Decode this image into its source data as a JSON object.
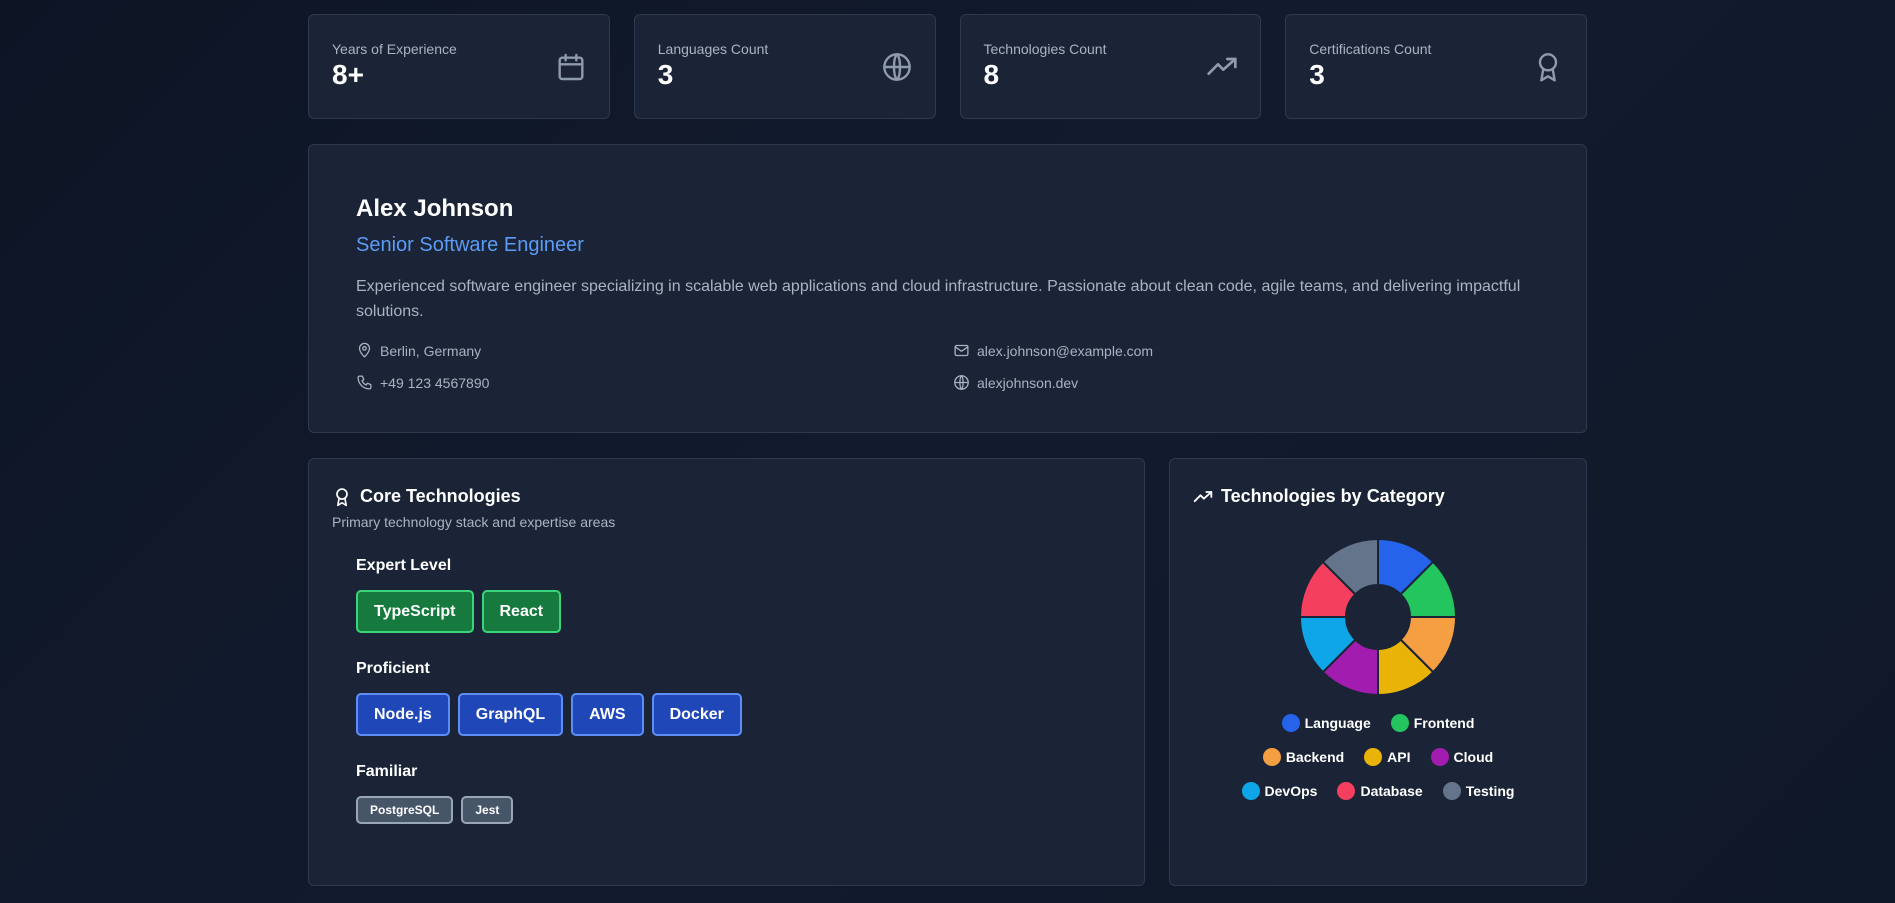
{
  "stats": [
    {
      "label": "Years of Experience",
      "value": "8+",
      "icon": "calendar-icon"
    },
    {
      "label": "Languages Count",
      "value": "3",
      "icon": "globe-icon"
    },
    {
      "label": "Technologies Count",
      "value": "8",
      "icon": "trending-up-icon"
    },
    {
      "label": "Certifications Count",
      "value": "3",
      "icon": "award-icon"
    }
  ],
  "profile": {
    "name": "Alex Johnson",
    "role": "Senior Software Engineer",
    "bio": "Experienced software engineer specializing in scalable web applications and cloud infrastructure. Passionate about clean code, agile teams, and delivering impactful solutions.",
    "location": "Berlin, Germany",
    "email": "alex.johnson@example.com",
    "phone": "+49 123 4567890",
    "website": "alexjohnson.dev"
  },
  "core": {
    "title": "Core Technologies",
    "subtitle": "Primary technology stack and expertise areas",
    "levels": [
      {
        "title": "Expert Level",
        "items": [
          "TypeScript",
          "React"
        ]
      },
      {
        "title": "Proficient",
        "items": [
          "Node.js",
          "GraphQL",
          "AWS",
          "Docker"
        ]
      },
      {
        "title": "Familiar",
        "items": [
          "PostgreSQL",
          "Jest"
        ]
      }
    ]
  },
  "category_panel": {
    "title": "Technologies by Category"
  },
  "chart_data": {
    "type": "pie",
    "categories": [
      "Language",
      "Frontend",
      "Backend",
      "API",
      "Cloud",
      "DevOps",
      "Database",
      "Testing"
    ],
    "values": [
      1,
      1,
      1,
      1,
      1,
      1,
      1,
      1
    ],
    "colors": [
      "#2563eb",
      "#22c55e",
      "#f59e42",
      "#eab308",
      "#a21caf",
      "#0ea5e9",
      "#f43f5e",
      "#64748b"
    ],
    "title": "Technologies by Category",
    "legend": "bottom"
  },
  "colors": {
    "accent": "#5b9cf6",
    "card": "#1a2436",
    "border": "#2d394e"
  }
}
